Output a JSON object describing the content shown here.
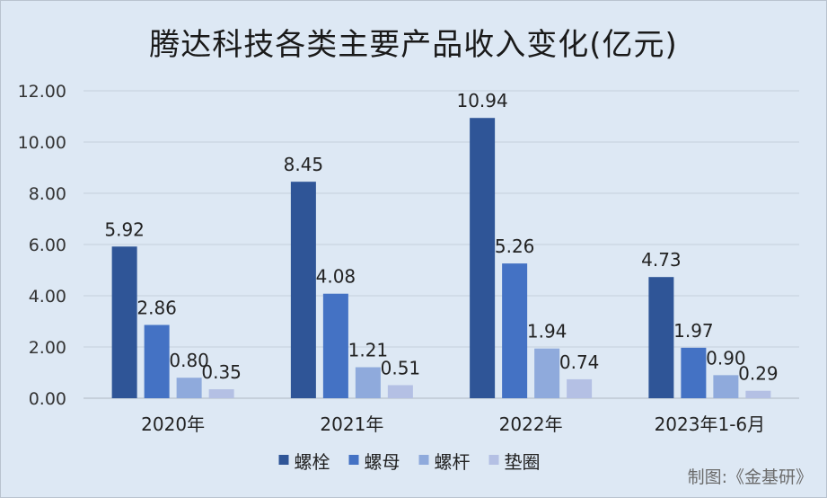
{
  "chart_data": {
    "type": "bar",
    "title": "腾达科技各类主要产品收入变化(亿元)",
    "categories": [
      "2020年",
      "2021年",
      "2022年",
      "2023年1-6月"
    ],
    "series": [
      {
        "name": "螺栓",
        "values": [
          5.92,
          8.45,
          10.94,
          4.73
        ],
        "color": "#2f5597",
        "labels": [
          "5.92",
          "8.45",
          "10.94",
          "4.73"
        ]
      },
      {
        "name": "螺母",
        "values": [
          2.86,
          4.08,
          5.26,
          1.97
        ],
        "color": "#4472c4",
        "labels": [
          "2.86",
          "4.08",
          "5.26",
          "1.97"
        ]
      },
      {
        "name": "螺杆",
        "values": [
          0.8,
          1.21,
          1.94,
          0.9
        ],
        "color": "#8faadc",
        "labels": [
          "0.80",
          "1.21",
          "1.94",
          "0.90"
        ]
      },
      {
        "name": "垫圈",
        "values": [
          0.35,
          0.51,
          0.74,
          0.29
        ],
        "color": "#b4c0e4",
        "labels": [
          "0.35",
          "0.51",
          "0.74",
          "0.29"
        ]
      }
    ],
    "ylim": [
      0,
      12
    ],
    "yticks": [
      "0.00",
      "2.00",
      "4.00",
      "6.00",
      "8.00",
      "10.00",
      "12.00"
    ],
    "grid": true,
    "legend_position": "bottom"
  },
  "credit": "制图:《金基研》"
}
